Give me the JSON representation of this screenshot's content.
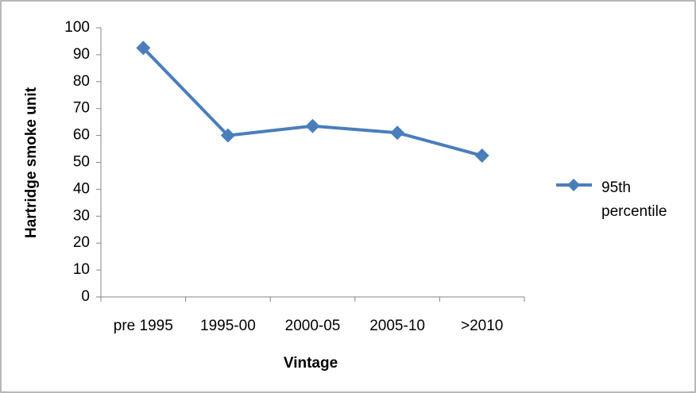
{
  "chart_data": {
    "type": "line",
    "x_label": "Vintage",
    "y_label": "Hartridge smoke unit",
    "categories": [
      "pre 1995",
      "1995-00",
      "2000-05",
      "2005-10",
      ">2010"
    ],
    "series": [
      {
        "name": "95th percentile",
        "color": "#4a7ebb",
        "values": [
          92.5,
          60,
          63.5,
          61,
          52.5
        ]
      }
    ],
    "ylim": [
      0,
      100
    ],
    "yticks": [
      0,
      10,
      20,
      30,
      40,
      50,
      60,
      70,
      80,
      90,
      100
    ],
    "grid": false,
    "legend": "right"
  }
}
